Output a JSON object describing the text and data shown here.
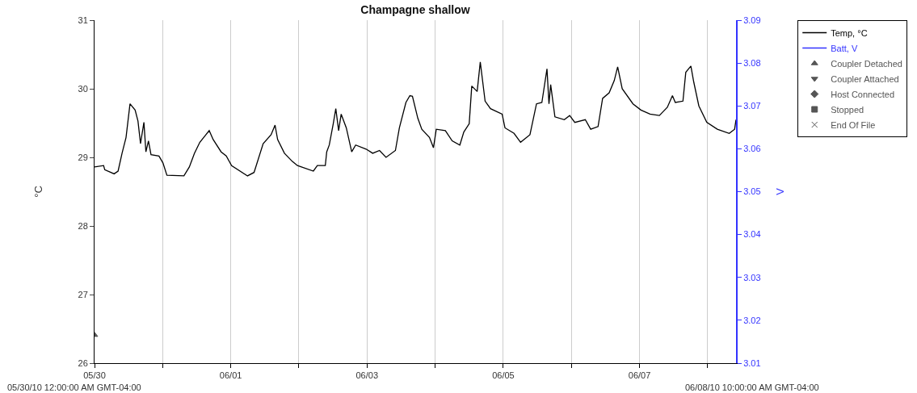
{
  "chart_data": {
    "type": "line",
    "title": "Champagne shallow",
    "ylabel": "°C",
    "y2label": "V",
    "annotations": [
      "05/30/10 12:00:00 AM GMT-04:00",
      "06/08/10 10:00:00 AM GMT-04:00"
    ],
    "series": [
      {
        "name": "Temp, °C",
        "color": "#000000",
        "x": [
          "--05-30T00:00",
          "--05-30T03:12",
          "--05-30T03:36",
          "--05-30T06:54",
          "--05-30T08:18",
          "--05-30T09:42",
          "--05-30T11:06",
          "--05-30T12:30",
          "--05-30T14:18",
          "--05-30T15:18",
          "--05-30T16:12",
          "--05-30T17:24",
          "--05-30T18:06",
          "--05-30T19:00",
          "--05-30T19:54",
          "--05-30T22:42",
          "--05-31T00:06",
          "--05-31T01:30",
          "--05-31T07:30",
          "--05-31T09:24",
          "--05-31T11:12",
          "--05-31T13:06",
          "--05-31T16:24",
          "--05-31T17:48",
          "--05-31T20:36",
          "--05-31T22:24",
          "--06-01T00:18",
          "--06-01T05:54",
          "--06-01T08:12",
          "--06-01T11:24",
          "--06-01T14:12",
          "--06-01T15:36",
          "--06-01T16:30",
          "--06-01T18:54",
          "--06-01T21:42",
          "--06-01T23:30",
          "--06-02T05:06",
          "--06-02T06:30",
          "--06-02T09:18",
          "--06-02T09:48",
          "--06-02T10:42",
          "--06-02T12:06",
          "--06-02T13:00",
          "--06-02T14:00",
          "--06-02T14:54",
          "--06-02T16:42",
          "--06-02T18:36",
          "--06-02T20:00",
          "--06-02T23:42",
          "--06-03T02:00",
          "--06-03T04:24",
          "--06-03T06:42",
          "--06-03T10:00",
          "--06-03T11:24",
          "--06-03T13:42",
          "--06-03T15:06",
          "--06-03T16:00",
          "--06-03T17:54",
          "--06-03T19:18",
          "--06-03T22:00",
          "--06-03T23:24",
          "--06-04T00:24",
          "--06-04T03:36",
          "--06-04T06:00",
          "--06-04T08:42",
          "--06-04T10:06",
          "--06-04T12:00",
          "--06-04T12:54",
          "--06-04T14:48",
          "--06-04T15:54",
          "--06-04T17:36",
          "--06-04T19:30",
          "--06-04T23:36",
          "--06-05T00:36",
          "--06-05T03:48",
          "--06-05T06:06",
          "--06-05T09:24",
          "--06-05T11:42",
          "--06-05T13:36",
          "--06-05T15:24",
          "--06-05T16:06",
          "--06-05T16:42",
          "--06-05T18:12",
          "--06-05T21:30",
          "--06-05T23:24",
          "--06-06T01:12",
          "--06-06T04:54",
          "--06-06T06:48",
          "--06-06T09:24",
          "--06-06T11:00",
          "--06-06T13:18",
          "--06-06T15:06",
          "--06-06T16:18",
          "--06-06T17:54",
          "--06-06T21:42",
          "--06-07T00:30",
          "--06-07T03:42",
          "--06-07T07:00",
          "--06-07T09:48",
          "--06-07T11:36",
          "--06-07T12:36",
          "--06-07T15:18",
          "--06-07T16:18",
          "--06-07T18:06",
          "--06-07T19:06",
          "--06-07T20:54",
          "--06-07T23:42",
          "--06-08T03:24",
          "--06-08T07:36",
          "--06-08T09:30",
          "--06-08T10:00"
        ],
        "values": [
          28.86,
          28.88,
          28.82,
          28.76,
          28.8,
          29.06,
          29.29,
          29.78,
          29.69,
          29.53,
          29.2,
          29.51,
          29.08,
          29.24,
          29.04,
          29.02,
          28.92,
          28.74,
          28.73,
          28.86,
          29.06,
          29.22,
          29.39,
          29.26,
          29.08,
          29.02,
          28.88,
          28.73,
          28.78,
          29.2,
          29.33,
          29.47,
          29.26,
          29.06,
          28.94,
          28.88,
          28.8,
          28.88,
          28.88,
          29.08,
          29.18,
          29.49,
          29.71,
          29.39,
          29.63,
          29.43,
          29.08,
          29.18,
          29.12,
          29.06,
          29.1,
          29.0,
          29.1,
          29.43,
          29.8,
          29.9,
          29.89,
          29.57,
          29.41,
          29.29,
          29.14,
          29.41,
          29.39,
          29.24,
          29.18,
          29.37,
          29.49,
          30.04,
          29.96,
          30.39,
          29.82,
          29.71,
          29.63,
          29.43,
          29.35,
          29.22,
          29.33,
          29.78,
          29.8,
          30.29,
          29.78,
          30.06,
          29.59,
          29.55,
          29.61,
          29.51,
          29.55,
          29.41,
          29.45,
          29.86,
          29.94,
          30.12,
          30.32,
          30.0,
          29.78,
          29.69,
          29.63,
          29.61,
          29.73,
          29.9,
          29.8,
          29.82,
          30.24,
          30.33,
          30.1,
          29.75,
          29.51,
          29.41,
          29.35,
          29.41,
          29.55
        ]
      },
      {
        "name": "Batt, V",
        "color": "#3333ff",
        "axis": "y2"
      },
      {
        "name": "Coupler Detached",
        "color": "#555555",
        "type": "scatter",
        "marker": "triangle",
        "x": [
          "--05-30T00:00"
        ],
        "values": [
          26.41
        ]
      },
      {
        "name": "Coupler Attached",
        "color": "#555555",
        "type": "scatter",
        "marker": "triangle-down"
      },
      {
        "name": "Host Connected",
        "color": "#555555",
        "type": "scatter",
        "marker": "diamond"
      },
      {
        "name": "Stopped",
        "color": "#555555",
        "type": "scatter",
        "marker": "square"
      },
      {
        "name": "End Of File",
        "color": "#555555",
        "type": "scatter",
        "marker": "cross"
      }
    ],
    "xlim": [
      "--05-30T00:00",
      "--06-08T10:00"
    ],
    "xticks": [
      {
        "value": "--05-30",
        "label": "05/30"
      },
      {
        "value": "--05-31",
        "label": null
      },
      {
        "value": "--06-01",
        "label": "06/01"
      },
      {
        "value": "--06-02",
        "label": null
      },
      {
        "value": "--06-03",
        "label": "06/03"
      },
      {
        "value": "--06-04",
        "label": null
      },
      {
        "value": "--06-05",
        "label": "06/05"
      },
      {
        "value": "--06-06",
        "label": null
      },
      {
        "value": "--06-07",
        "label": "06/07"
      },
      {
        "value": "--06-08",
        "label": null
      }
    ],
    "ylim": [
      26,
      31
    ],
    "yticks": [
      26,
      27,
      28,
      29,
      30,
      31
    ],
    "y2lim": [
      3.01,
      3.09
    ],
    "y2ticks": [
      3.01,
      3.02,
      3.03,
      3.04,
      3.05,
      3.06,
      3.07,
      3.08,
      3.09
    ],
    "grid": "x",
    "legend": "top right",
    "line_style": "solid"
  }
}
